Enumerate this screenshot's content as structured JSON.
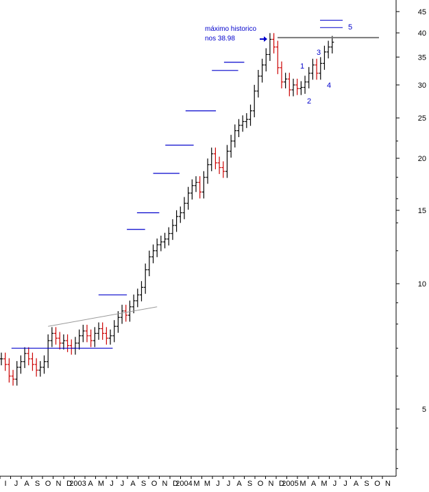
{
  "chart_data": {
    "type": "ohlc",
    "yscale": "log",
    "ylim": [
      3.5,
      50
    ],
    "y_ticks": [
      5,
      10,
      15,
      20,
      25,
      30,
      35,
      40,
      45
    ],
    "x_ticks": [
      "I",
      "J",
      "A",
      "S",
      "O",
      "N",
      "D",
      "2003",
      "A",
      "M",
      "J",
      "J",
      "A",
      "S",
      "O",
      "N",
      "D",
      "2004",
      "M",
      "M",
      "J",
      "J",
      "A",
      "S",
      "O",
      "N",
      "D",
      "2005",
      "M",
      "A",
      "M",
      "J",
      "J",
      "A",
      "S",
      "O",
      "N"
    ],
    "colors": {
      "up_bar": "#000000",
      "down_bar": "#cc0000",
      "support_line": "#0000cc",
      "trend_line": "#999999",
      "max_line": "#777777",
      "annotation": "#0000cc"
    },
    "series": [
      {
        "values": [
          {
            "x": 0,
            "c": 6.6
          },
          {
            "x": 1,
            "c": 6.4
          },
          {
            "x": 2,
            "c": 6.0
          },
          {
            "x": 3,
            "c": 5.9
          },
          {
            "x": 4,
            "c": 6.3
          },
          {
            "x": 5,
            "c": 6.5
          },
          {
            "x": 6,
            "c": 6.8
          },
          {
            "x": 7,
            "c": 6.6
          },
          {
            "x": 8,
            "c": 6.4
          },
          {
            "x": 9,
            "c": 6.2
          },
          {
            "x": 10,
            "c": 6.3
          },
          {
            "x": 11,
            "c": 6.5
          },
          {
            "x": 12,
            "c": 7.3
          },
          {
            "x": 13,
            "c": 7.6
          },
          {
            "x": 14,
            "c": 7.4
          },
          {
            "x": 15,
            "c": 7.2
          },
          {
            "x": 16,
            "c": 7.3
          },
          {
            "x": 17,
            "c": 7.1
          },
          {
            "x": 18,
            "c": 7.0
          },
          {
            "x": 19,
            "c": 7.2
          },
          {
            "x": 20,
            "c": 7.5
          },
          {
            "x": 21,
            "c": 7.7
          },
          {
            "x": 22,
            "c": 7.5
          },
          {
            "x": 23,
            "c": 7.3
          },
          {
            "x": 24,
            "c": 7.6
          },
          {
            "x": 25,
            "c": 7.8
          },
          {
            "x": 26,
            "c": 7.6
          },
          {
            "x": 27,
            "c": 7.4
          },
          {
            "x": 28,
            "c": 7.5
          },
          {
            "x": 29,
            "c": 7.9
          },
          {
            "x": 30,
            "c": 8.3
          },
          {
            "x": 31,
            "c": 8.6
          },
          {
            "x": 32,
            "c": 8.4
          },
          {
            "x": 33,
            "c": 8.8
          },
          {
            "x": 34,
            "c": 9.1
          },
          {
            "x": 35,
            "c": 9.4
          },
          {
            "x": 36,
            "c": 9.8
          },
          {
            "x": 37,
            "c": 10.8
          },
          {
            "x": 38,
            "c": 11.6
          },
          {
            "x": 39,
            "c": 12.0
          },
          {
            "x": 40,
            "c": 12.4
          },
          {
            "x": 41,
            "c": 12.6
          },
          {
            "x": 42,
            "c": 12.8
          },
          {
            "x": 43,
            "c": 13.2
          },
          {
            "x": 44,
            "c": 13.8
          },
          {
            "x": 45,
            "c": 14.5
          },
          {
            "x": 46,
            "c": 14.8
          },
          {
            "x": 47,
            "c": 15.6
          },
          {
            "x": 48,
            "c": 16.5
          },
          {
            "x": 49,
            "c": 17.2
          },
          {
            "x": 50,
            "c": 17.5
          },
          {
            "x": 51,
            "c": 16.6
          },
          {
            "x": 52,
            "c": 18.0
          },
          {
            "x": 53,
            "c": 19.3
          },
          {
            "x": 54,
            "c": 20.5
          },
          {
            "x": 55,
            "c": 19.5
          },
          {
            "x": 56,
            "c": 19.0
          },
          {
            "x": 57,
            "c": 18.6
          },
          {
            "x": 58,
            "c": 20.8
          },
          {
            "x": 59,
            "c": 22.0
          },
          {
            "x": 60,
            "c": 23.3
          },
          {
            "x": 61,
            "c": 24.0
          },
          {
            "x": 62,
            "c": 24.5
          },
          {
            "x": 63,
            "c": 24.8
          },
          {
            "x": 64,
            "c": 26.0
          },
          {
            "x": 65,
            "c": 29.0
          },
          {
            "x": 66,
            "c": 31.5
          },
          {
            "x": 67,
            "c": 33.5
          },
          {
            "x": 68,
            "c": 35.5
          },
          {
            "x": 69,
            "c": 38.6
          },
          {
            "x": 70,
            "c": 37.0
          },
          {
            "x": 71,
            "c": 33.0
          },
          {
            "x": 72,
            "c": 30.5
          },
          {
            "x": 73,
            "c": 31.0
          },
          {
            "x": 74,
            "c": 29.2
          },
          {
            "x": 75,
            "c": 30.0
          },
          {
            "x": 76,
            "c": 29.4
          },
          {
            "x": 77,
            "c": 29.6
          },
          {
            "x": 78,
            "c": 30.5
          },
          {
            "x": 79,
            "c": 32.0
          },
          {
            "x": 80,
            "c": 33.5
          },
          {
            "x": 81,
            "c": 32.0
          },
          {
            "x": 82,
            "c": 33.8
          },
          {
            "x": 83,
            "c": 36.0
          },
          {
            "x": 84,
            "c": 37.0
          },
          {
            "x": 85,
            "c": 38.0
          }
        ]
      }
    ],
    "levels": [
      {
        "kind": "support",
        "y": 7.0,
        "x0": 5,
        "x1": 55
      },
      {
        "kind": "resistance",
        "y": 9.4,
        "x0": 48,
        "x1": 62
      },
      {
        "kind": "step",
        "y": 13.5,
        "x0": 62,
        "x1": 71
      },
      {
        "kind": "step",
        "y": 14.8,
        "x0": 67,
        "x1": 78
      },
      {
        "kind": "step",
        "y": 18.4,
        "x0": 75,
        "x1": 88
      },
      {
        "kind": "step",
        "y": 21.5,
        "x0": 81,
        "x1": 95
      },
      {
        "kind": "step",
        "y": 26.0,
        "x0": 91,
        "x1": 106
      },
      {
        "kind": "step",
        "y": 32.5,
        "x0": 104,
        "x1": 117
      },
      {
        "kind": "step",
        "y": 34.0,
        "x0": 110,
        "x1": 120
      }
    ],
    "annotations": {
      "max_label_line1": "máximo historico",
      "max_label_line2": "nos 38.98",
      "max_value": 38.98,
      "wave_labels": [
        "1",
        "2",
        "3",
        "4",
        "5"
      ]
    }
  }
}
